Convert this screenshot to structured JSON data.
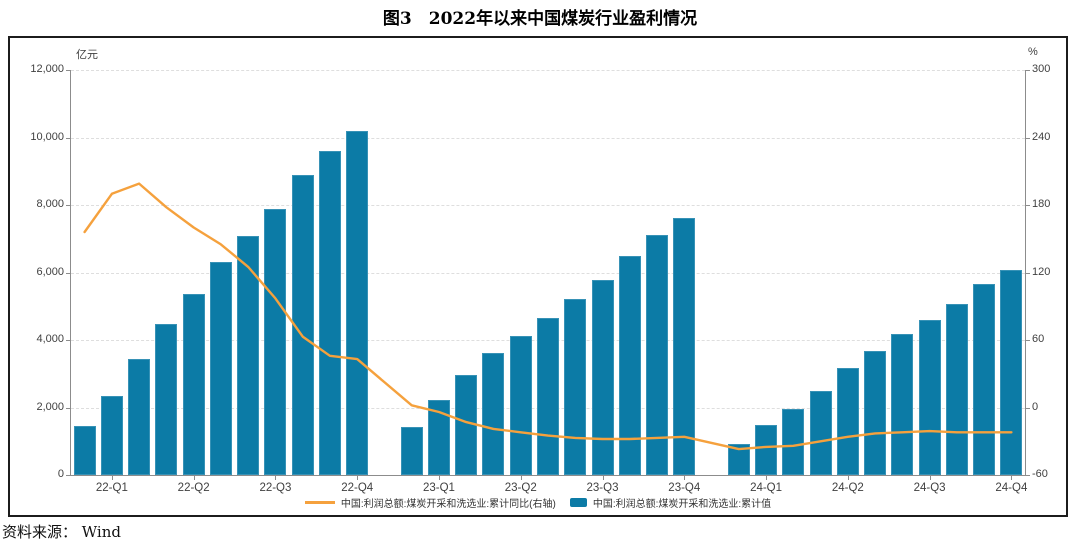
{
  "title": "图3　2022年以来中国煤炭行业盈利情况",
  "source": "资料来源： Wind",
  "chart_data": {
    "type": "bar",
    "subtype": "monthly cumulative bars with YoY growth line on secondary axis",
    "x": [
      "2022-02",
      "2022-03",
      "2022-04",
      "2022-05",
      "2022-06",
      "2022-07",
      "2022-08",
      "2022-09",
      "2022-10",
      "2022-11",
      "2022-12",
      "2023-02",
      "2023-03",
      "2023-04",
      "2023-05",
      "2023-06",
      "2023-07",
      "2023-08",
      "2023-09",
      "2023-10",
      "2023-11",
      "2023-12",
      "2024-02",
      "2024-03",
      "2024-04",
      "2024-05",
      "2024-06",
      "2024-07",
      "2024-08",
      "2024-09",
      "2024-10",
      "2024-11",
      "2024-12"
    ],
    "series": [
      {
        "name": "中国:利润总额:煤炭开采和洗选业:累计同比(右轴)",
        "type": "line",
        "axis": "right",
        "values": [
          156,
          190,
          199,
          178,
          160,
          145,
          125,
          97,
          63,
          46,
          43,
          2,
          -4,
          -13,
          -19,
          -22,
          -25,
          -27,
          -28,
          -28,
          -27,
          -26,
          -37,
          -35,
          -34,
          -30,
          -26,
          -23,
          -22,
          -21,
          -22,
          -22,
          -22
        ]
      },
      {
        "name": "中国:利润总额:煤炭开采和洗选业:累计值",
        "type": "bar",
        "axis": "left",
        "values": [
          1450,
          2330,
          3450,
          4470,
          5370,
          6310,
          7090,
          7870,
          8880,
          9590,
          10200,
          1430,
          2220,
          2960,
          3630,
          4120,
          4650,
          5220,
          5790,
          6500,
          7110,
          7630,
          930,
          1480,
          1950,
          2490,
          3160,
          3680,
          4180,
          4600,
          5060,
          5660,
          6060
        ]
      }
    ],
    "left_axis": {
      "unit": "亿元",
      "min": 0,
      "max": 12000,
      "tick_labels": [
        "12,000",
        "10,000",
        "8,000",
        "6,000",
        "4,000",
        "2,000",
        "0"
      ]
    },
    "right_axis": {
      "unit": "%",
      "min": -60,
      "max": 300,
      "tick_labels": [
        "300",
        "240",
        "180",
        "120",
        "60",
        "0",
        "-60"
      ]
    },
    "x_ticks": [
      {
        "label": "22-Q1",
        "slot": 1
      },
      {
        "label": "22-Q2",
        "slot": 4
      },
      {
        "label": "22-Q3",
        "slot": 7
      },
      {
        "label": "22-Q4",
        "slot": 10
      },
      {
        "label": "23-Q1",
        "slot": 13
      },
      {
        "label": "23-Q2",
        "slot": 16
      },
      {
        "label": "23-Q3",
        "slot": 19
      },
      {
        "label": "23-Q4",
        "slot": 22
      },
      {
        "label": "24-Q1",
        "slot": 25
      },
      {
        "label": "24-Q2",
        "slot": 28
      },
      {
        "label": "24-Q3",
        "slot": 31
      },
      {
        "label": "24-Q4",
        "slot": 34
      }
    ],
    "layout": {
      "slots": 35,
      "months_per_year": 11,
      "grid": "dashed horizontal",
      "legend_position": "bottom center"
    },
    "colors": {
      "bar": "#0c7ba6",
      "line": "#f5a13d",
      "grid": "#dedede",
      "axis": "#8c8c8c",
      "text": "#404040"
    }
  }
}
